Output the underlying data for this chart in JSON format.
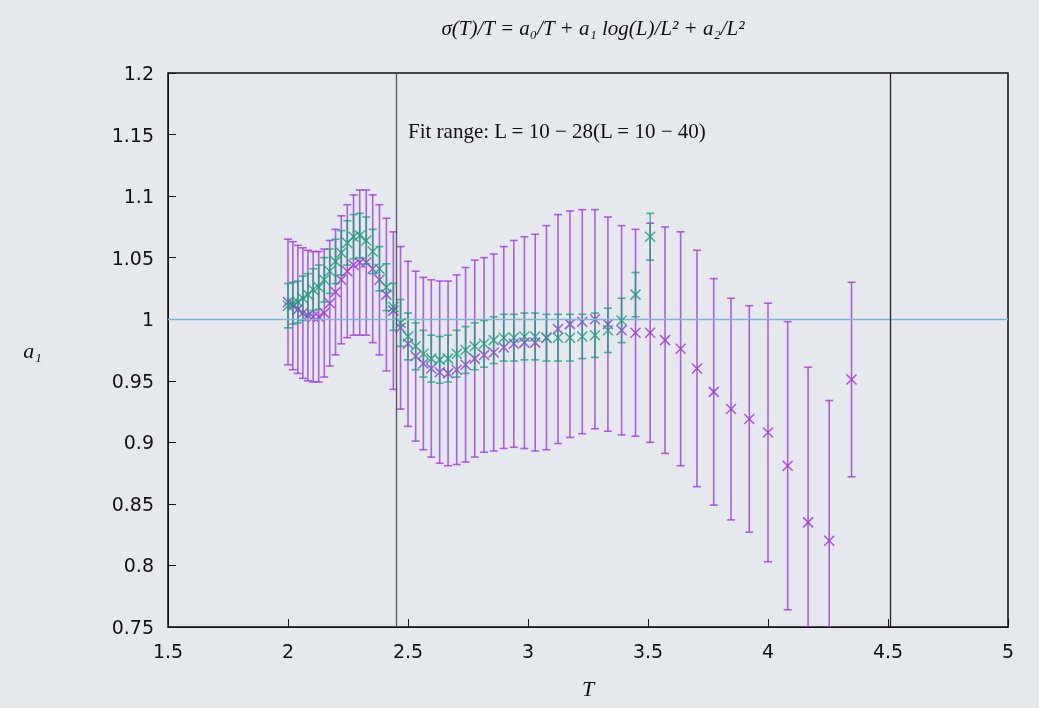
{
  "chart_data": {
    "type": "scatter",
    "title": "σ(T)/T = a₀/T + a₁ log(L)/L² + a₂/L²",
    "xlabel": "T",
    "ylabel": "a₁",
    "annotations": [
      "Fit range: L = 10 − 28(L = 10 − 40)"
    ],
    "xlim": [
      1.5,
      5
    ],
    "xticks": [
      1.5,
      2,
      2.5,
      3,
      3.5,
      4,
      4.5,
      5
    ],
    "ylim": [
      0.75,
      1.2
    ],
    "yticks": [
      0.75,
      0.8,
      0.85,
      0.9,
      0.95,
      1,
      1.05,
      1.1,
      1.15,
      1.2
    ],
    "grid": false,
    "marker": "cross",
    "ref_lines": [
      {
        "axis": "y",
        "value": 1,
        "color": "#7fb3d8"
      },
      {
        "axis": "x",
        "value": 2.45,
        "color": "#555555"
      },
      {
        "axis": "x",
        "value": 4.51,
        "color": "#222222"
      }
    ],
    "series": [
      {
        "color": "#9b30e0",
        "x": [
          2.0,
          2.02,
          2.041,
          2.062,
          2.083,
          2.105,
          2.128,
          2.151,
          2.174,
          2.198,
          2.222,
          2.247,
          2.273,
          2.299,
          2.326,
          2.353,
          2.381,
          2.41,
          2.439,
          2.469,
          2.5,
          2.532,
          2.564,
          2.597,
          2.632,
          2.667,
          2.703,
          2.74,
          2.778,
          2.817,
          2.857,
          2.899,
          2.941,
          2.985,
          3.03,
          3.077,
          3.125,
          3.175,
          3.226,
          3.279,
          3.333,
          3.39,
          3.448,
          3.509,
          3.571,
          3.636,
          3.704,
          3.774,
          3.846,
          3.922,
          4.0,
          4.082,
          4.167,
          4.255,
          4.348
        ],
        "values": [
          1.014,
          1.011,
          1.008,
          1.005,
          1.003,
          1.002,
          1.002,
          1.005,
          1.013,
          1.022,
          1.032,
          1.039,
          1.044,
          1.046,
          1.046,
          1.041,
          1.032,
          1.02,
          1.007,
          0.993,
          0.98,
          0.97,
          0.964,
          0.96,
          0.957,
          0.956,
          0.959,
          0.963,
          0.968,
          0.971,
          0.973,
          0.977,
          0.98,
          0.981,
          0.981,
          0.985,
          0.992,
          0.996,
          0.998,
          1.0,
          0.996,
          0.991,
          0.989,
          0.989,
          0.983,
          0.976,
          0.96,
          0.941,
          0.927,
          0.919,
          0.908,
          0.881,
          0.835,
          0.82,
          0.951
        ],
        "errors": [
          0.051,
          0.052,
          0.052,
          0.053,
          0.053,
          0.053,
          0.053,
          0.052,
          0.051,
          0.051,
          0.052,
          0.054,
          0.057,
          0.059,
          0.059,
          0.06,
          0.061,
          0.062,
          0.064,
          0.066,
          0.067,
          0.069,
          0.07,
          0.072,
          0.074,
          0.075,
          0.077,
          0.079,
          0.08,
          0.079,
          0.08,
          0.082,
          0.084,
          0.086,
          0.088,
          0.091,
          0.093,
          0.092,
          0.091,
          0.089,
          0.087,
          0.085,
          0.084,
          0.089,
          0.092,
          0.095,
          0.096,
          0.092,
          0.09,
          0.092,
          0.105,
          0.117,
          [
            0.75,
            0.961
          ],
          [
            0.75,
            0.934
          ],
          0.079
        ]
      },
      {
        "color": "#1a9e7a",
        "x": [
          2.0,
          2.02,
          2.041,
          2.062,
          2.083,
          2.105,
          2.128,
          2.151,
          2.174,
          2.198,
          2.222,
          2.247,
          2.273,
          2.299,
          2.326,
          2.353,
          2.381,
          2.41,
          2.439,
          2.469,
          2.5,
          2.532,
          2.564,
          2.597,
          2.632,
          2.667,
          2.703,
          2.74,
          2.778,
          2.817,
          2.857,
          2.899,
          2.941,
          2.985,
          3.03,
          3.077,
          3.125,
          3.175,
          3.226,
          3.279,
          3.333,
          3.39,
          3.448,
          3.509
        ],
        "values": [
          1.011,
          1.013,
          1.014,
          1.017,
          1.02,
          1.024,
          1.026,
          1.032,
          1.039,
          1.047,
          1.054,
          1.062,
          1.067,
          1.068,
          1.064,
          1.055,
          1.041,
          1.026,
          1.01,
          0.997,
          0.986,
          0.978,
          0.972,
          0.968,
          0.967,
          0.968,
          0.972,
          0.975,
          0.978,
          0.98,
          0.983,
          0.985,
          0.985,
          0.986,
          0.986,
          0.985,
          0.985,
          0.985,
          0.986,
          0.987,
          0.991,
          0.999,
          1.02,
          1.067
        ],
        "errors": [
          0.018,
          0.017,
          0.017,
          0.018,
          0.017,
          0.017,
          0.018,
          0.018,
          0.018,
          0.018,
          0.018,
          0.018,
          0.018,
          0.018,
          0.019,
          0.018,
          0.018,
          0.019,
          0.019,
          0.019,
          0.019,
          0.019,
          0.019,
          0.019,
          0.019,
          0.019,
          0.019,
          0.019,
          0.019,
          0.019,
          0.019,
          0.019,
          0.019,
          0.019,
          0.019,
          0.019,
          0.019,
          0.019,
          0.018,
          0.018,
          0.018,
          0.018,
          0.018,
          0.019
        ]
      }
    ]
  }
}
